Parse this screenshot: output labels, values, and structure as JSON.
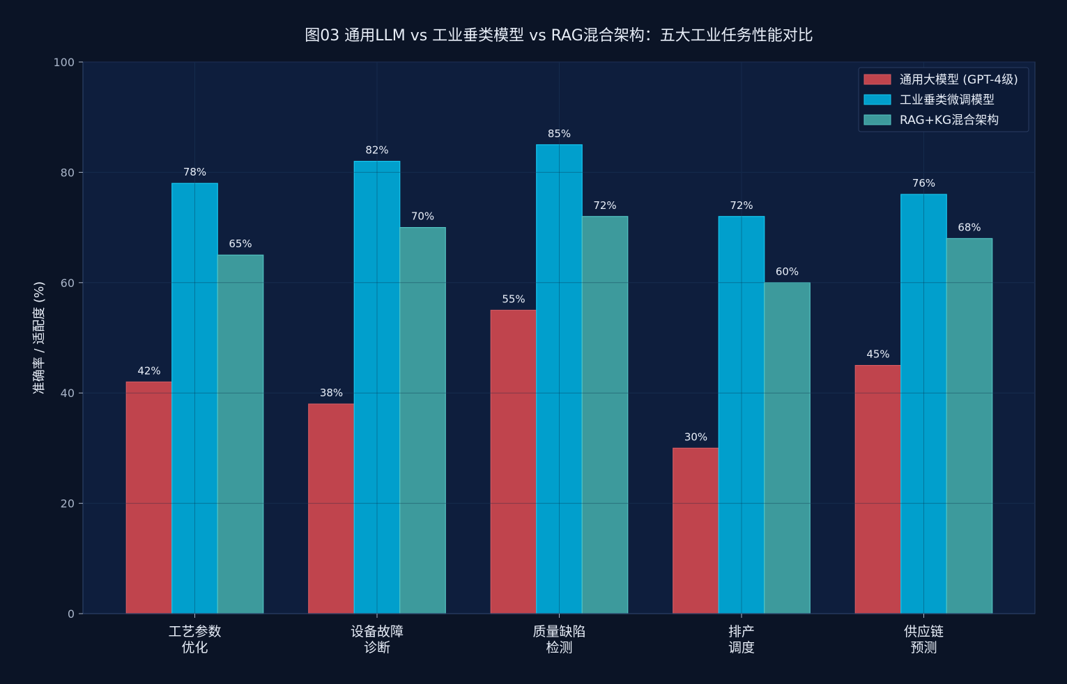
{
  "colors": {
    "page_bg": "#0b1426",
    "plot_bg": "#0e1e3d",
    "grid": "#1d2f55",
    "axis": "#2b3f66",
    "text": "#e8eef8",
    "tick_text": "#a8b4c8",
    "legend_bg": "#0c1a36",
    "legend_border": "#2a3c62"
  },
  "chart_data": {
    "type": "bar",
    "title": "图03 通用LLM vs 工业垂类模型 vs RAG混合架构：五大工业任务性能对比",
    "xlabel": "",
    "ylabel": "准确率 / 适配度 (%)",
    "ylim": [
      0,
      100
    ],
    "yticks": [
      0,
      20,
      40,
      60,
      80,
      100
    ],
    "grid": true,
    "legend_position": "top-right",
    "categories": [
      [
        "工艺参数",
        "优化"
      ],
      [
        "设备故障",
        "诊断"
      ],
      [
        "质量缺陷",
        "检测"
      ],
      [
        "排产",
        "调度"
      ],
      [
        "供应链",
        "预测"
      ]
    ],
    "series": [
      {
        "name": "通用大模型 (GPT-4级)",
        "color": "#c0444d",
        "edge": "#d15a62",
        "values": [
          42,
          38,
          55,
          30,
          45
        ],
        "labels": [
          "42%",
          "38%",
          "55%",
          "30%",
          "45%"
        ]
      },
      {
        "name": "工业垂类微调模型",
        "color": "#019fcc",
        "edge": "#17c6ee",
        "values": [
          78,
          82,
          85,
          72,
          76
        ],
        "labels": [
          "78%",
          "82%",
          "85%",
          "72%",
          "76%"
        ]
      },
      {
        "name": "RAG+KG混合架构",
        "color": "#3d9a9c",
        "edge": "#52c2c2",
        "values": [
          65,
          70,
          72,
          60,
          68
        ],
        "labels": [
          "65%",
          "70%",
          "72%",
          "60%",
          "68%"
        ]
      }
    ]
  }
}
